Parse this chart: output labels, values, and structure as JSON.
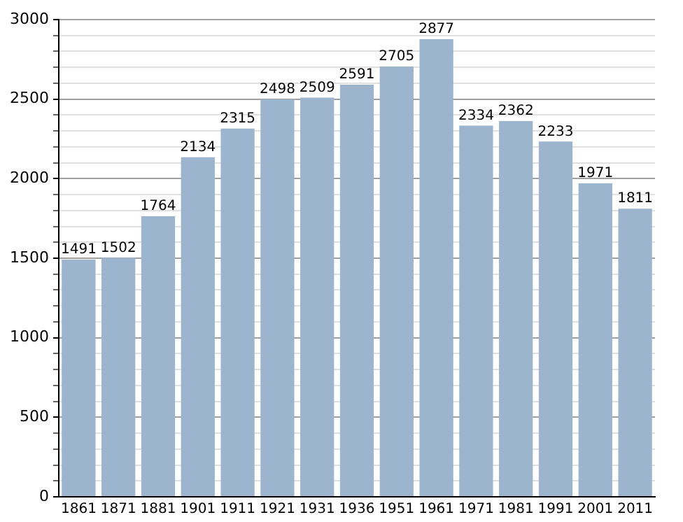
{
  "chart_data": {
    "type": "bar",
    "categories": [
      "1861",
      "1871",
      "1881",
      "1901",
      "1911",
      "1921",
      "1931",
      "1936",
      "1951",
      "1961",
      "1971",
      "1981",
      "1991",
      "2001",
      "2011"
    ],
    "values": [
      1491,
      1502,
      1764,
      2134,
      2315,
      2498,
      2509,
      2591,
      2705,
      2877,
      2334,
      2362,
      2233,
      1971,
      1811
    ],
    "color": "#9db4cf",
    "data_labels": true,
    "grid": "y",
    "legend": false,
    "ylim": [
      0,
      3000
    ],
    "yticks": [
      0,
      {
        "value": 100,
        "label": null
      },
      {
        "value": 200,
        "label": null
      },
      {
        "value": 300,
        "label": null
      },
      {
        "value": 400,
        "label": null
      },
      500,
      {
        "value": 600,
        "label": null
      },
      {
        "value": 700,
        "label": null
      },
      {
        "value": 800,
        "label": null
      },
      {
        "value": 900,
        "label": null
      },
      1000,
      {
        "value": 1100,
        "label": null
      },
      {
        "value": 1200,
        "label": null
      },
      {
        "value": 1300,
        "label": null
      },
      {
        "value": 1400,
        "label": null
      },
      1500,
      {
        "value": 1600,
        "label": null
      },
      {
        "value": 1700,
        "label": null
      },
      {
        "value": 1800,
        "label": null
      },
      {
        "value": 1900,
        "label": null
      },
      2000,
      {
        "value": 2100,
        "label": null
      },
      {
        "value": 2200,
        "label": null
      },
      {
        "value": 2300,
        "label": null
      },
      {
        "value": 2400,
        "label": null
      },
      2500,
      {
        "value": 2600,
        "label": null
      },
      {
        "value": 2700,
        "label": null
      },
      {
        "value": 2800,
        "label": null
      },
      {
        "value": 2900,
        "label": null
      },
      3000
    ]
  }
}
